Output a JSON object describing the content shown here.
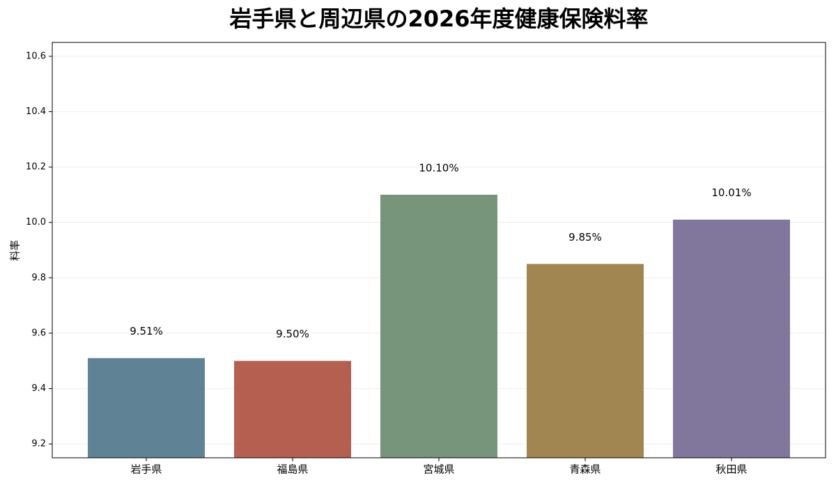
{
  "chart_data": {
    "type": "bar",
    "title": "岩手県と周辺県の2026年度健康保険料率",
    "y_label": "料率",
    "categories": [
      "岩手県",
      "福島県",
      "宮城県",
      "青森県",
      "秋田県"
    ],
    "values": [
      9.51,
      9.5,
      10.1,
      9.85,
      10.01
    ],
    "value_labels": [
      "9.51%",
      "9.50%",
      "10.10%",
      "9.85%",
      "10.01%"
    ],
    "colors": [
      "#5f8395",
      "#b55f50",
      "#77957a",
      "#a18651",
      "#81769c"
    ],
    "ylim": [
      9.15,
      10.65
    ],
    "yticks": [
      9.2,
      9.4,
      9.6,
      9.8,
      {
        "value": 10,
        "label": "10.0"
      },
      10.2,
      10.4,
      10.6
    ],
    "grid": true
  }
}
